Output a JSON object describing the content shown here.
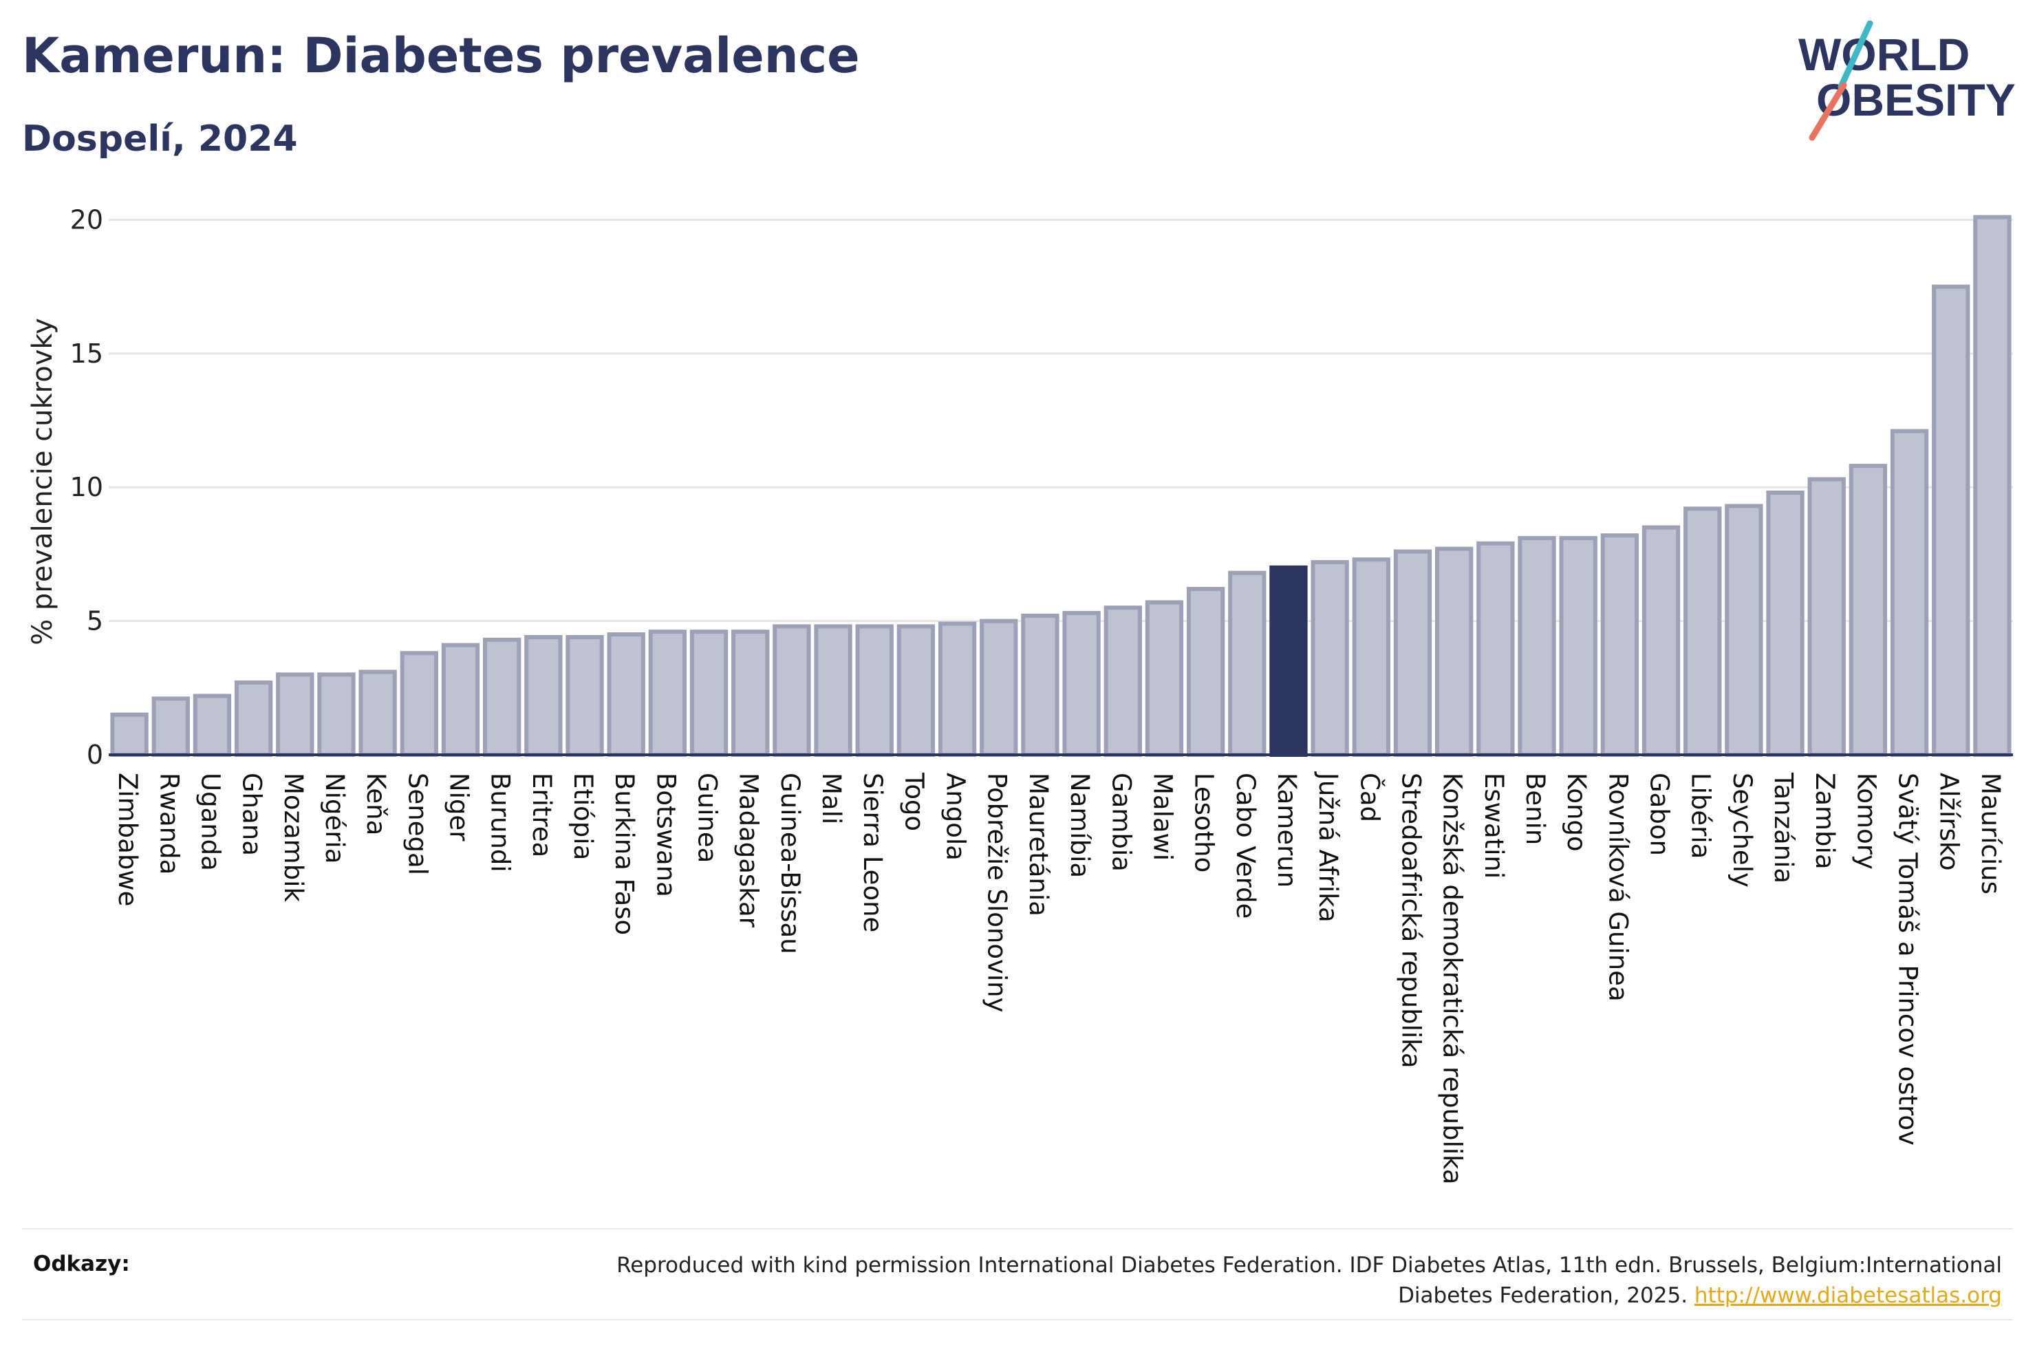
{
  "header": {
    "title": "Kamerun: Diabetes prevalence",
    "subtitle": "Dospelí, 2024"
  },
  "logo": {
    "line1": "WORLD",
    "line2": "OBESITY"
  },
  "chart_data": {
    "type": "bar",
    "ylabel": "% prevalencie cukrovky",
    "ylim": [
      0,
      20.5
    ],
    "yticks": [
      0,
      5,
      10,
      15,
      20
    ],
    "grid": true,
    "highlight": "Kamerun",
    "categories": [
      "Zimbabwe",
      "Rwanda",
      "Uganda",
      "Ghana",
      "Mozambik",
      "Nigéria",
      "Keňa",
      "Senegal",
      "Niger",
      "Burundi",
      "Eritrea",
      "Etiópia",
      "Burkina Faso",
      "Botswana",
      "Guinea",
      "Madagaskar",
      "Guinea-Bissau",
      "Mali",
      "Sierra Leone",
      "Togo",
      "Angola",
      "Pobrežie Slonoviny",
      "Mauretánia",
      "Namíbia",
      "Gambia",
      "Malawi",
      "Lesotho",
      "Cabo Verde",
      "Kamerun",
      "Južná Afrika",
      "Čad",
      "Stredoafrická republika",
      "Konžská demokratická republika",
      "Eswatini",
      "Benin",
      "Kongo",
      "Rovníková Guinea",
      "Gabon",
      "Libéria",
      "Seychely",
      "Tanzánia",
      "Zambia",
      "Komory",
      "Svätý Tomáš a Princov ostrov",
      "Alžírsko",
      "Maurícius"
    ],
    "values": [
      1.5,
      2.1,
      2.2,
      2.7,
      3.0,
      3.0,
      3.1,
      3.8,
      4.1,
      4.3,
      4.4,
      4.4,
      4.5,
      4.6,
      4.6,
      4.6,
      4.8,
      4.8,
      4.8,
      4.8,
      4.9,
      5.0,
      5.2,
      5.3,
      5.5,
      5.7,
      6.2,
      6.8,
      7.0,
      7.2,
      7.3,
      7.6,
      7.7,
      7.9,
      8.1,
      8.1,
      8.2,
      8.5,
      9.2,
      9.3,
      9.8,
      10.3,
      10.8,
      12.1,
      17.5,
      20.1
    ],
    "colors": {
      "bar": "#bfc2d0",
      "bar_edge": "#9ca1b8",
      "highlight": "#2b3560",
      "grid": "#e6e6e6",
      "axis": "#2b3560"
    }
  },
  "footer": {
    "label": "Odkazy:",
    "text": "Reproduced with kind permission International Diabetes Federation. IDF Diabetes Atlas, 11th edn. Brussels, Belgium:International Diabetes Federation, 2025.",
    "link": "http://www.diabetesatlas.org"
  }
}
